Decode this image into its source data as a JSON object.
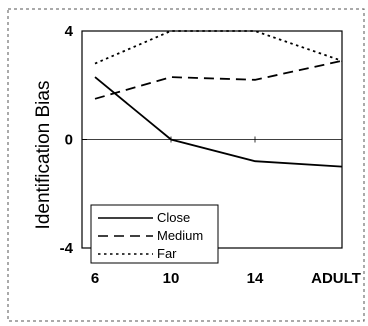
{
  "chart_data": {
    "type": "line",
    "title": "",
    "xlabel": "",
    "ylabel": "Identification Bias",
    "categories": [
      "6",
      "10",
      "14",
      "ADULT"
    ],
    "ylim": [
      -4,
      4
    ],
    "yticks": [
      "4",
      "0",
      "-4"
    ],
    "grid": false,
    "legend_position": "bottom-left",
    "series": [
      {
        "name": "Close",
        "style": "solid",
        "values": [
          2.3,
          0.0,
          -0.8,
          -1.0
        ]
      },
      {
        "name": "Medium",
        "style": "dashed",
        "values": [
          1.5,
          2.3,
          2.2,
          2.9
        ]
      },
      {
        "name": "Far",
        "style": "dotted",
        "values": [
          2.8,
          4.0,
          4.0,
          2.9
        ]
      }
    ],
    "colors": {
      "lines": "#000000",
      "background": "#ffffff"
    }
  }
}
